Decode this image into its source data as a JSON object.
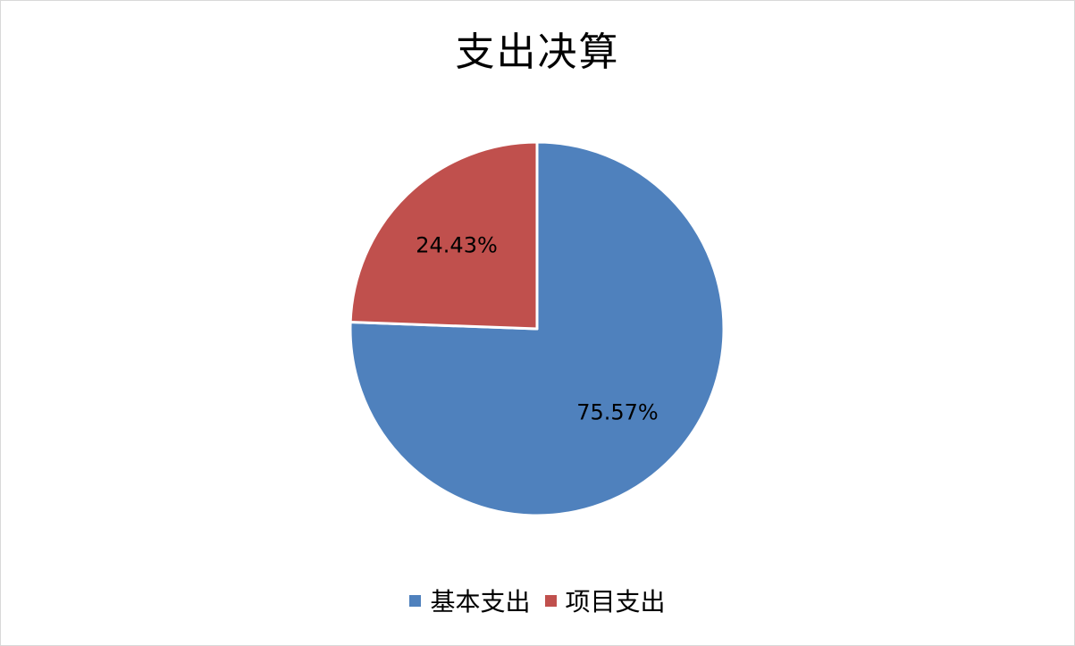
{
  "chart_data": {
    "type": "pie",
    "title": "支出决算",
    "categories": [
      "基本支出",
      "项目支出"
    ],
    "values": [
      75.57,
      24.43
    ],
    "labels": [
      "75.57%",
      "24.43%"
    ],
    "colors": [
      "#4f81bd",
      "#c0504d"
    ],
    "legend_position": "bottom"
  }
}
